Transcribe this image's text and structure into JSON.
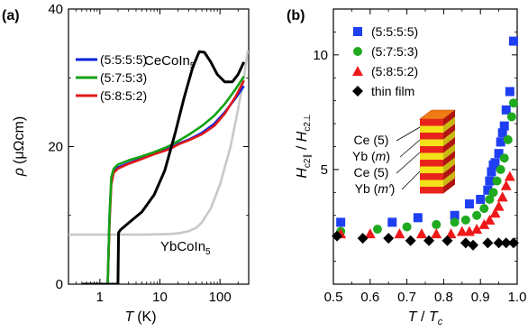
{
  "chart_data": [
    {
      "panel_label": "(a)",
      "type": "line",
      "xlabel_var": "T",
      "xlabel_unit": "(K)",
      "ylabel_var": "ρ",
      "ylabel_unit": "(μΩcm)",
      "x_scale": "log",
      "xlim": [
        0.3,
        300
      ],
      "ylim": [
        0,
        40
      ],
      "x_ticks": [
        1,
        10,
        100
      ],
      "x_tick_labels": [
        "1",
        "10",
        "100"
      ],
      "y_ticks": [
        0,
        20,
        40
      ],
      "y_tick_labels": [
        "0",
        "20",
        "40"
      ],
      "legend_position": "upper-left",
      "grid": false,
      "annotations": [
        {
          "text_main": "CeCoIn",
          "text_sub": "5",
          "near_series": "CeCoIn5"
        },
        {
          "text_main": "YbCoIn",
          "text_sub": "5",
          "near_series": "YbCoIn5"
        }
      ],
      "series": [
        {
          "name": "(5:5:5:5)",
          "color": "#0a22e0",
          "in_legend": true,
          "x": [
            0.5,
            0.9,
            1.2,
            1.35,
            1.45,
            1.55,
            1.7,
            2,
            3,
            5,
            8,
            12,
            15,
            20,
            30,
            50,
            80,
            120,
            180,
            250
          ],
          "y": [
            0,
            0,
            0,
            0,
            10,
            15,
            16.4,
            17,
            17.6,
            18.3,
            19,
            19.5,
            19.8,
            20.4,
            21,
            22,
            23.3,
            25,
            27,
            28.8
          ]
        },
        {
          "name": "(5:7:5:3)",
          "color": "#12a312",
          "in_legend": true,
          "x": [
            0.5,
            0.9,
            1.2,
            1.35,
            1.45,
            1.55,
            1.7,
            2,
            3,
            5,
            8,
            12,
            15,
            20,
            30,
            50,
            80,
            120,
            180,
            250
          ],
          "y": [
            0,
            0,
            0,
            0,
            10,
            15.5,
            16.8,
            17.4,
            18,
            18.6,
            19.2,
            19.8,
            20.2,
            20.8,
            21.7,
            23,
            24.5,
            26.2,
            28.3,
            30.2
          ]
        },
        {
          "name": "(5:8:5:2)",
          "color": "#e01818",
          "in_legend": true,
          "x": [
            0.5,
            0.9,
            1.2,
            1.35,
            1.45,
            1.55,
            1.7,
            2,
            3,
            5,
            8,
            12,
            15,
            20,
            30,
            50,
            80,
            120,
            180,
            250
          ],
          "y": [
            0,
            0,
            0,
            0,
            9,
            14.5,
            16.2,
            16.8,
            17.5,
            18.2,
            18.9,
            19.4,
            19.7,
            20.3,
            20.9,
            21.8,
            23,
            24.8,
            27.2,
            29.6
          ]
        },
        {
          "name": "CeCoIn5",
          "color": "#000000",
          "in_legend": false,
          "x": [
            0.5,
            1.5,
            1.9,
            2.0,
            2.05,
            2.2,
            3,
            5,
            8,
            12,
            18,
            25,
            35,
            45,
            55,
            70,
            90,
            120,
            160,
            200,
            250
          ],
          "y": [
            0,
            0,
            0,
            0,
            7.5,
            7.9,
            8.9,
            10.5,
            13,
            16.5,
            22,
            27,
            31.5,
            33.8,
            33.7,
            32.3,
            30.5,
            29.4,
            29.4,
            30.5,
            32.3
          ]
        },
        {
          "name": "YbCoIn5",
          "color": "#c8c8c8",
          "in_legend": false,
          "x": [
            0.3,
            2,
            5,
            10,
            15,
            20,
            30,
            40,
            50,
            70,
            100,
            150,
            200,
            250,
            290
          ],
          "y": [
            7.2,
            7.2,
            7.2,
            7.25,
            7.3,
            7.4,
            7.7,
            8.2,
            9,
            11,
            14.5,
            20,
            25.5,
            30,
            34
          ]
        }
      ]
    },
    {
      "panel_label": "(b)",
      "type": "scatter",
      "xlabel_var": "T",
      "xlabel_sep": " / ",
      "xlabel_var2": "T",
      "xlabel_sub2": "c",
      "ylabel_var": "H",
      "ylabel_sub": "c2∥",
      "ylabel_sep": " / ",
      "ylabel_var2": "H",
      "ylabel_sub2": "c2⊥",
      "xlim": [
        0.5,
        1.0
      ],
      "ylim": [
        0,
        12
      ],
      "x_ticks": [
        0.5,
        0.6,
        0.7,
        0.8,
        0.9,
        1.0
      ],
      "x_tick_labels": [
        "0.5",
        "0.6",
        "0.7",
        "0.8",
        "0.9",
        "1.0"
      ],
      "y_ticks": [
        5,
        10
      ],
      "y_tick_labels": [
        "5",
        "10"
      ],
      "legend_position": "upper-left",
      "grid": false,
      "inset_labels": [
        {
          "text": "Ce (5)"
        },
        {
          "prefix": "Yb (",
          "italic": "m",
          "suffix": ")"
        },
        {
          "text": "Ce (5)"
        },
        {
          "prefix": "Yb (",
          "italic": "m′",
          "suffix": ")"
        }
      ],
      "series": [
        {
          "name": "(5:5:5:5)",
          "marker": "square",
          "color": "#1f3ff2",
          "x": [
            0.52,
            0.66,
            0.73,
            0.83,
            0.87,
            0.9,
            0.92,
            0.925,
            0.93,
            0.935,
            0.94,
            0.95,
            0.955,
            0.96,
            0.965,
            0.97,
            0.98,
            0.99
          ],
          "y": [
            2.7,
            2.7,
            2.9,
            3.0,
            3.5,
            3.7,
            4.1,
            4.5,
            4.9,
            5.2,
            5.3,
            5.7,
            6.2,
            6.6,
            6.9,
            7.6,
            8.4,
            10.6
          ]
        },
        {
          "name": "(5:7:5:3)",
          "marker": "circle",
          "color": "#1faa1f",
          "x": [
            0.52,
            0.62,
            0.7,
            0.78,
            0.83,
            0.86,
            0.89,
            0.91,
            0.925,
            0.935,
            0.945,
            0.955,
            0.965,
            0.975,
            0.985,
            0.99
          ],
          "y": [
            2.3,
            2.4,
            2.5,
            2.6,
            2.7,
            2.8,
            3.0,
            3.3,
            3.7,
            4.0,
            4.5,
            5.0,
            5.5,
            6.3,
            7.3,
            7.9
          ]
        },
        {
          "name": "(5:8:5:2)",
          "marker": "triangle",
          "color": "#ee1a1a",
          "x": [
            0.52,
            0.6,
            0.68,
            0.74,
            0.78,
            0.82,
            0.85,
            0.87,
            0.89,
            0.91,
            0.925,
            0.94,
            0.95,
            0.96,
            0.97,
            0.98
          ],
          "y": [
            2.2,
            2.2,
            2.2,
            2.2,
            2.2,
            2.2,
            2.3,
            2.3,
            2.4,
            2.6,
            2.8,
            3.1,
            3.4,
            3.8,
            4.3,
            4.7
          ]
        },
        {
          "name": "thin film",
          "marker": "diamond",
          "color": "#000000",
          "x": [
            0.51,
            0.58,
            0.65,
            0.71,
            0.76,
            0.81,
            0.86,
            0.88,
            0.92,
            0.95,
            0.97,
            0.99
          ],
          "y": [
            2.1,
            2.0,
            2.0,
            1.9,
            1.9,
            1.9,
            1.8,
            1.7,
            1.8,
            1.8,
            1.8,
            1.8
          ]
        }
      ]
    }
  ]
}
